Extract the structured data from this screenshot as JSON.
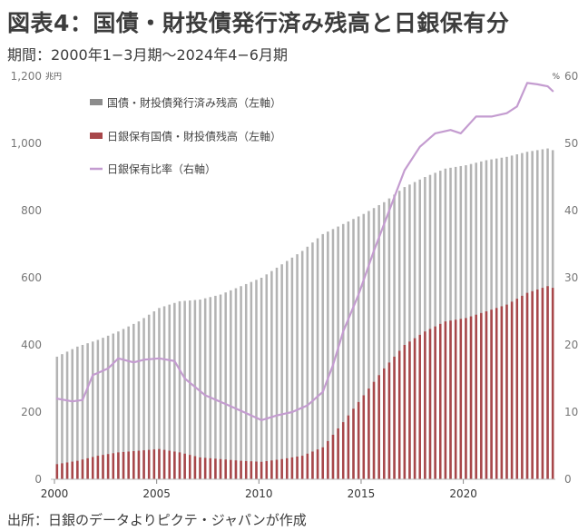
{
  "title": "図表4：国債・財投債発行済み残高と日銀保有分",
  "subtitle": "期間：2000年1−3月期～2024年4−6月期",
  "source": "出所：日銀のデータよりピクテ・ジャパンが作成",
  "chart_data": {
    "type": "bar",
    "frequency": "quarterly",
    "start": "2000年1−3月期",
    "end": "2024年4−6月期",
    "left_axis": {
      "unit": "兆円",
      "ylim": [
        0,
        1200
      ],
      "ticks": [
        0,
        200,
        400,
        600,
        800,
        1000,
        1200
      ]
    },
    "right_axis": {
      "unit": "%",
      "ylim": [
        0,
        60
      ],
      "ticks": [
        0,
        10,
        20,
        30,
        40,
        50,
        60
      ]
    },
    "x_ticks": [
      "2000",
      "2005",
      "2010",
      "2015",
      "2020"
    ],
    "colors": {
      "outstanding": "#b3b3b3",
      "boj": "#a8474a",
      "ratio": "#c49cd0",
      "axis": "#bbbbbb"
    },
    "legend": [
      {
        "name": "国債・財投債発行済み残高（左軸）",
        "style": "bar",
        "color": "#8c8c8c"
      },
      {
        "name": "日銀保有国債・財投債残高（左軸）",
        "style": "bar",
        "color": "#a8474a"
      },
      {
        "name": "日銀保有比率（右軸）",
        "style": "line",
        "color": "#c49cd0"
      }
    ],
    "series": [
      {
        "key": "outstanding",
        "axis": "left",
        "anchors": [
          [
            "2000Q1",
            365
          ],
          [
            "2001Q1",
            395
          ],
          [
            "2002Q1",
            415
          ],
          [
            "2003Q1",
            440
          ],
          [
            "2004Q1",
            470
          ],
          [
            "2005Q1",
            510
          ],
          [
            "2006Q1",
            530
          ],
          [
            "2007Q1",
            535
          ],
          [
            "2008Q1",
            550
          ],
          [
            "2009Q1",
            575
          ],
          [
            "2010Q1",
            600
          ],
          [
            "2011Q1",
            640
          ],
          [
            "2012Q1",
            680
          ],
          [
            "2013Q1",
            730
          ],
          [
            "2014Q1",
            760
          ],
          [
            "2015Q1",
            790
          ],
          [
            "2016Q1",
            825
          ],
          [
            "2017Q1",
            870
          ],
          [
            "2018Q1",
            900
          ],
          [
            "2019Q1",
            925
          ],
          [
            "2020Q1",
            935
          ],
          [
            "2021Q1",
            950
          ],
          [
            "2022Q1",
            960
          ],
          [
            "2023Q1",
            975
          ],
          [
            "2024Q1",
            985
          ],
          [
            "2024Q2",
            980
          ]
        ]
      },
      {
        "key": "boj",
        "axis": "left",
        "anchors": [
          [
            "2000Q1",
            45
          ],
          [
            "2001Q1",
            55
          ],
          [
            "2002Q1",
            70
          ],
          [
            "2003Q1",
            80
          ],
          [
            "2004Q1",
            85
          ],
          [
            "2005Q1",
            90
          ],
          [
            "2006Q1",
            80
          ],
          [
            "2007Q1",
            65
          ],
          [
            "2008Q1",
            60
          ],
          [
            "2009Q1",
            55
          ],
          [
            "2010Q1",
            52
          ],
          [
            "2011Q1",
            60
          ],
          [
            "2012Q1",
            70
          ],
          [
            "2013Q1",
            95
          ],
          [
            "2014Q1",
            170
          ],
          [
            "2015Q1",
            250
          ],
          [
            "2016Q1",
            330
          ],
          [
            "2017Q1",
            400
          ],
          [
            "2018Q1",
            440
          ],
          [
            "2019Q1",
            470
          ],
          [
            "2020Q1",
            480
          ],
          [
            "2021Q1",
            500
          ],
          [
            "2022Q1",
            520
          ],
          [
            "2023Q1",
            555
          ],
          [
            "2024Q1",
            575
          ],
          [
            "2024Q2",
            570
          ]
        ]
      },
      {
        "key": "ratio",
        "axis": "right",
        "anchors": [
          [
            "2000Q1",
            12
          ],
          [
            "2000Q4",
            11.6
          ],
          [
            "2001Q2",
            11.8
          ],
          [
            "2001Q4",
            15.5
          ],
          [
            "2002Q3",
            16.5
          ],
          [
            "2003Q1",
            18
          ],
          [
            "2003Q4",
            17.4
          ],
          [
            "2004Q2",
            17.8
          ],
          [
            "2005Q1",
            18
          ],
          [
            "2005Q4",
            17.6
          ],
          [
            "2006Q2",
            15
          ],
          [
            "2007Q2",
            12.5
          ],
          [
            "2008Q2",
            11.2
          ],
          [
            "2009Q3",
            9.5
          ],
          [
            "2010Q1",
            8.8
          ],
          [
            "2010Q4",
            9.5
          ],
          [
            "2011Q3",
            10
          ],
          [
            "2012Q2",
            11
          ],
          [
            "2013Q1",
            13
          ],
          [
            "2013Q3",
            17
          ],
          [
            "2014Q1",
            22
          ],
          [
            "2014Q4",
            27.5
          ],
          [
            "2015Q3",
            34
          ],
          [
            "2016Q2",
            40
          ],
          [
            "2017Q1",
            46
          ],
          [
            "2017Q4",
            49.5
          ],
          [
            "2018Q3",
            51.5
          ],
          [
            "2019Q2",
            52
          ],
          [
            "2019Q4",
            51.5
          ],
          [
            "2020Q3",
            54
          ],
          [
            "2021Q2",
            54
          ],
          [
            "2022Q1",
            54.5
          ],
          [
            "2022Q3",
            55.5
          ],
          [
            "2023Q1",
            59
          ],
          [
            "2023Q3",
            58.8
          ],
          [
            "2024Q1",
            58.5
          ],
          [
            "2024Q2",
            57.8
          ]
        ]
      }
    ]
  }
}
